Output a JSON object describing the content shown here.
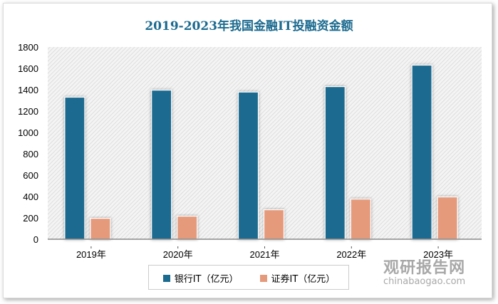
{
  "chart_data": {
    "type": "bar",
    "title": "2019-2023年我国金融IT投融资金额",
    "categories": [
      "2019年",
      "2020年",
      "2021年",
      "2022年",
      "2023年"
    ],
    "series": [
      {
        "name": "银行IT（亿元）",
        "color": "#1b6a8f",
        "values": [
          1330,
          1396,
          1378,
          1429,
          1630
        ]
      },
      {
        "name": "证券IT（亿元）",
        "color": "#e59a7b",
        "values": [
          196,
          216,
          276,
          376,
          396
        ]
      }
    ],
    "ylim": [
      0,
      1800
    ],
    "yticks": [
      0,
      200,
      400,
      600,
      800,
      1000,
      1200,
      1400,
      1600,
      1800
    ],
    "xlabel": "",
    "ylabel": "",
    "grid": false,
    "background": "hatched",
    "legend": "bottom"
  },
  "watermark": {
    "cn": "观研报告网",
    "en": "chinabaogao.com"
  }
}
